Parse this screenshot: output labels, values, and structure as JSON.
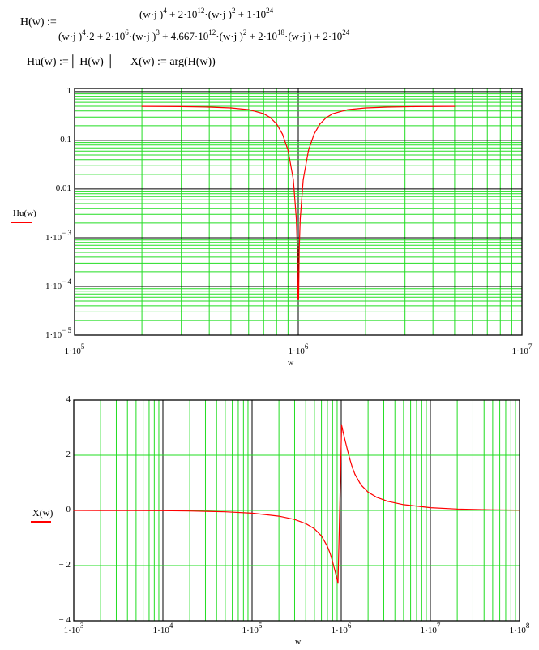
{
  "worksheet": {
    "h_def": {
      "lhs": "H(w) :=",
      "numerator": [
        {
          "t": "(w·j )"
        },
        {
          "sup": "4"
        },
        {
          "t": " + 2·10"
        },
        {
          "sup": "12"
        },
        {
          "t": "·(w·j )"
        },
        {
          "sup": "2"
        },
        {
          "t": " + 1·10"
        },
        {
          "sup": "24"
        }
      ],
      "denominator": [
        {
          "t": "(w·j )"
        },
        {
          "sup": "4"
        },
        {
          "t": "·2 + 2·10"
        },
        {
          "sup": "6"
        },
        {
          "t": "·(w·j )"
        },
        {
          "sup": "3"
        },
        {
          "t": " + 4.667·10"
        },
        {
          "sup": "12"
        },
        {
          "t": "·(w·j )"
        },
        {
          "sup": "2"
        },
        {
          "t": " + 2·10"
        },
        {
          "sup": "18"
        },
        {
          "t": "·(w·j ) + 2·10"
        },
        {
          "sup": "24"
        }
      ]
    },
    "hu_def": "Hu(w) :=│ H(w) │",
    "x_def": "X(w) := arg(H(w))"
  },
  "colors": {
    "trace": "#ff0000",
    "minor_grid": "#22dd22",
    "major_grid": "#000000"
  },
  "chart_data": [
    {
      "type": "line",
      "xlabel": "w",
      "ylabel": "Hu(w)",
      "xscale": "log",
      "yscale": "log",
      "xlim": [
        100000,
        10000000
      ],
      "ylim": [
        1e-05,
        1.16
      ],
      "grid": true,
      "x_ticks": [
        {
          "base": "1·10",
          "exp": "5"
        },
        {
          "base": "1·10",
          "exp": "6"
        },
        {
          "base": "1·10",
          "exp": "7"
        }
      ],
      "y_ticks": [
        {
          "base": "1",
          "exp": ""
        },
        {
          "base": "0.1",
          "exp": ""
        },
        {
          "base": "0.01",
          "exp": ""
        },
        {
          "base": "1·10",
          "exp": "− 3"
        },
        {
          "base": "1·10",
          "exp": "− 4"
        },
        {
          "base": "1·10",
          "exp": "− 5"
        }
      ],
      "x": [
        200000,
        300000,
        400000,
        500000,
        600000,
        700000,
        750000,
        800000,
        850000,
        900000,
        950000,
        980000,
        990000,
        997000,
        1003000,
        1010100,
        1020400,
        1052600,
        1111100,
        1176500,
        1250000,
        1333300,
        1428600,
        1666700,
        2000000,
        2500000,
        3333300,
        5000000
      ],
      "y": [
        0.4964,
        0.4909,
        0.4808,
        0.4623,
        0.4258,
        0.3516,
        0.2917,
        0.216,
        0.134,
        0.06227,
        0.01554,
        0.002442,
        0.000605,
        5.4e-05,
        5.4e-05,
        0.000605,
        0.002442,
        0.01554,
        0.06227,
        0.134,
        0.216,
        0.2917,
        0.3516,
        0.4258,
        0.4623,
        0.4808,
        0.4909,
        0.4964
      ]
    },
    {
      "type": "line",
      "xlabel": "w",
      "ylabel": "X(w)",
      "xscale": "log",
      "yscale": "linear",
      "xlim": [
        1000,
        100000000
      ],
      "ylim": [
        -4,
        4
      ],
      "grid": true,
      "x_ticks": [
        {
          "base": "1·10",
          "exp": "3"
        },
        {
          "base": "1·10",
          "exp": "4"
        },
        {
          "base": "1·10",
          "exp": "5"
        },
        {
          "base": "1·10",
          "exp": "6"
        },
        {
          "base": "1·10",
          "exp": "7"
        },
        {
          "base": "1·10",
          "exp": "8"
        }
      ],
      "y_ticks": [
        {
          "base": "4",
          "exp": ""
        },
        {
          "base": "2",
          "exp": ""
        },
        {
          "base": "0",
          "exp": ""
        },
        {
          "base": "− 2",
          "exp": ""
        },
        {
          "base": "− 4",
          "exp": ""
        }
      ],
      "x": [
        1000,
        2000,
        5000,
        10000,
        20000,
        50000,
        100000,
        200000,
        300000,
        400000,
        500000,
        600000,
        700000,
        750000,
        800000,
        850000,
        900000,
        920000,
        1010000,
        1020400,
        1052600,
        1111100,
        1176500,
        1250000,
        1333300,
        1428600,
        1666700,
        2000000,
        2500000,
        3333300,
        5000000,
        10000000,
        20000000,
        50000000,
        100000000
      ],
      "y": [
        -0.001,
        -0.002,
        -0.005,
        -0.01,
        -0.02,
        -0.0501,
        -0.101,
        -0.2083,
        -0.3297,
        -0.4758,
        -0.664,
        -0.9245,
        -1.3051,
        -1.5592,
        -1.854,
        -2.1782,
        -2.5105,
        -2.6414,
        3.0819,
        3.0205,
        2.8338,
        2.5105,
        2.1782,
        1.854,
        1.5592,
        1.3051,
        0.9245,
        0.664,
        0.4758,
        0.3297,
        0.2083,
        0.101,
        0.0501,
        0.02,
        0.01
      ]
    }
  ]
}
